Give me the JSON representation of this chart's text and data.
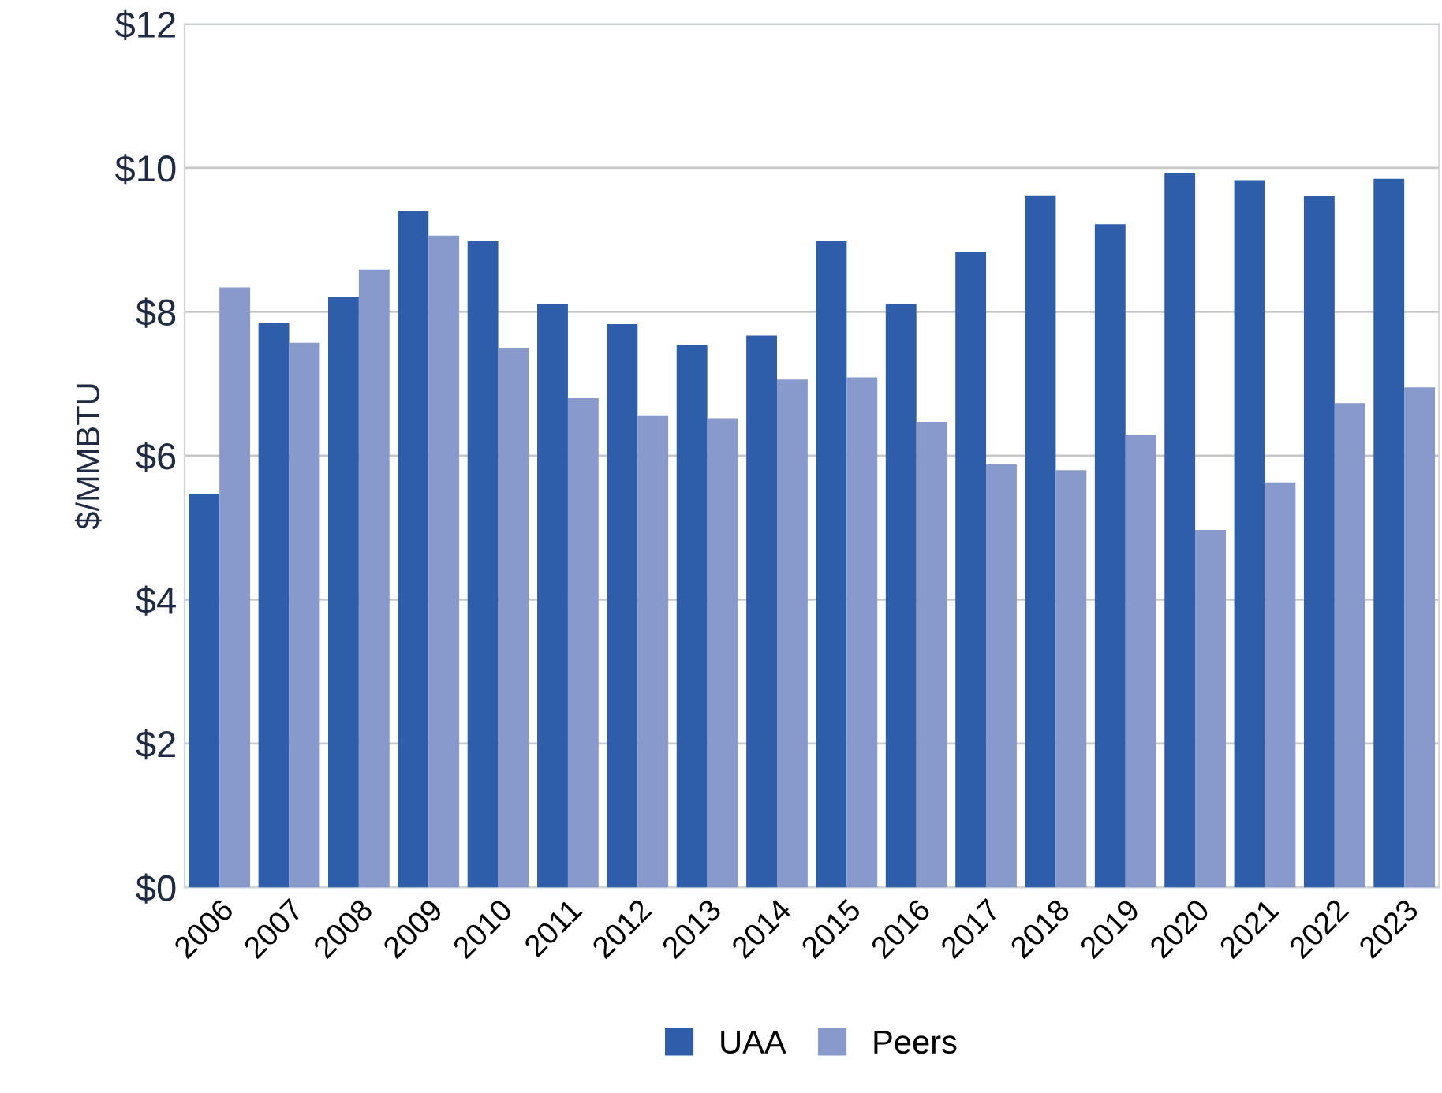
{
  "chart_data": {
    "type": "bar",
    "ylabel": "$/MMBTU",
    "categories": [
      "2006",
      "2007",
      "2008",
      "2009",
      "2010",
      "2011",
      "2012",
      "2013",
      "2014",
      "2015",
      "2016",
      "2017",
      "2018",
      "2019",
      "2020",
      "2021",
      "2022",
      "2023"
    ],
    "series": [
      {
        "name": "UAA",
        "color": "#2e5eaa",
        "values": [
          5.47,
          7.84,
          8.21,
          9.4,
          8.98,
          8.11,
          7.83,
          7.54,
          7.67,
          8.98,
          8.11,
          8.83,
          9.62,
          9.22,
          9.93,
          9.83,
          9.61,
          9.85
        ]
      },
      {
        "name": "Peers",
        "color": "#8899cc",
        "values": [
          8.34,
          7.57,
          8.59,
          9.06,
          7.5,
          6.8,
          6.56,
          6.52,
          7.06,
          7.09,
          6.47,
          5.88,
          5.8,
          6.29,
          4.97,
          5.63,
          6.73,
          6.95
        ]
      }
    ],
    "ylim": [
      0,
      12
    ],
    "yticks": [
      {
        "value": 0,
        "label": "$0"
      },
      {
        "value": 2,
        "label": "$2"
      },
      {
        "value": 4,
        "label": "$4"
      },
      {
        "value": 6,
        "label": "$6"
      },
      {
        "value": 8,
        "label": "$8"
      },
      {
        "value": 10,
        "label": "$10"
      },
      {
        "value": 12,
        "label": "$12"
      }
    ],
    "grid": "y",
    "legend": "bottom"
  }
}
